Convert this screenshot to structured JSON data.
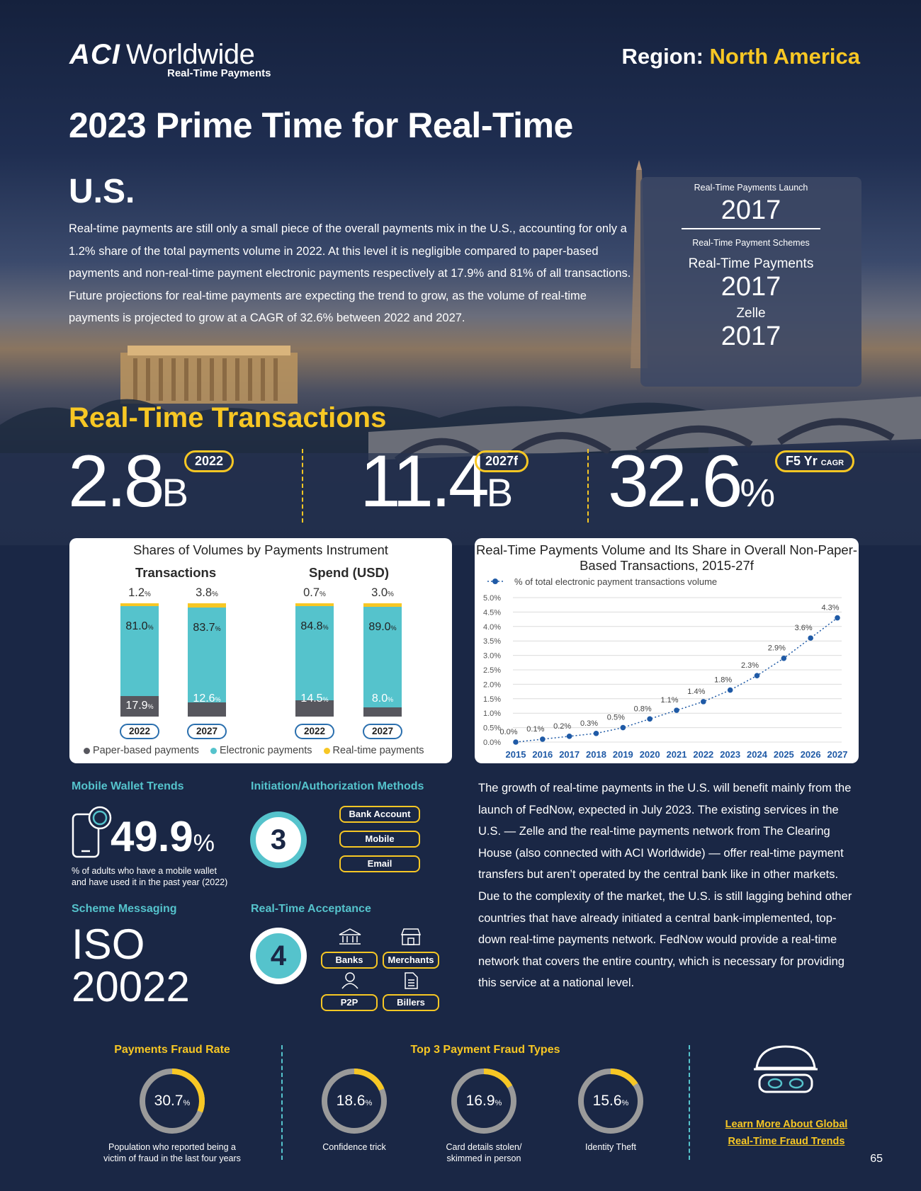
{
  "header": {
    "logo_main": "Worldwide",
    "logo_mark": "ACI",
    "logo_sub": "Real-Time Payments",
    "region_label": "Region:",
    "region_value": "North America",
    "title": "2023 Prime Time for Real-Time"
  },
  "intro": {
    "country": "U.S.",
    "text": "Real-time payments are still only a small piece of the overall payments mix in the U.S., accounting for only a 1.2% share of the total payments volume in 2022. At this level it is negligible compared to paper-based payments and non-real-time payment electronic payments respectively at 17.9% and 81% of all transactions. Future projections for real-time payments are expecting the trend to grow, as the volume of real-time payments is projected to grow at a CAGR of 32.6% between 2022 and 2027."
  },
  "launch_box": {
    "launch_label": "Real-Time Payments Launch",
    "launch_year": "2017",
    "schemes_label": "Real-Time Payment Schemes",
    "scheme1_name": "Real-Time Payments",
    "scheme1_year": "2017",
    "scheme2_name": "Zelle",
    "scheme2_year": "2017"
  },
  "transactions": {
    "title": "Real-Time Transactions",
    "k1_value": "2.8",
    "k1_unit": "B",
    "k1_tag": "2022",
    "k2_value": "11.4",
    "k2_unit": "B",
    "k2_tag": "2027f",
    "k3_value": "32.6",
    "k3_unit": "%",
    "k3_tag": "F5 Yr",
    "k3_tag_small": "CAGR"
  },
  "shares_chart": {
    "title": "Shares of Volumes by Payments Instrument",
    "group1": "Transactions",
    "group2": "Spend (USD)",
    "pct": "%",
    "legend_paper": "Paper-based payments",
    "legend_electronic": "Electronic payments",
    "legend_rt": "Real-time payments",
    "bars": [
      {
        "year": "2022",
        "rt": "1.2",
        "el": "81.0",
        "pb": "17.9"
      },
      {
        "year": "2027",
        "rt": "3.8",
        "el": "83.7",
        "pb": "12.6"
      },
      {
        "year": "2022",
        "rt": "0.7",
        "el": "84.8",
        "pb": "14.5"
      },
      {
        "year": "2027",
        "rt": "3.0",
        "el": "89.0",
        "pb": "8.0"
      }
    ]
  },
  "chart_data": {
    "type": "line",
    "title": "Real-Time Payments Volume and Its Share in Overall Non-Paper-Based Transactions, 2015-27f",
    "series": [
      {
        "name": "% of total electronic payment transactions volume",
        "values": [
          0.0,
          0.1,
          0.2,
          0.3,
          0.5,
          0.8,
          1.1,
          1.4,
          1.8,
          2.3,
          2.9,
          3.6,
          4.3
        ]
      }
    ],
    "x": [
      "2015",
      "2016",
      "2017",
      "2018",
      "2019",
      "2020",
      "2021",
      "2022",
      "2023",
      "2024",
      "2025",
      "2026",
      "2027"
    ],
    "yticks": [
      "0.0%",
      "0.5%",
      "1.0%",
      "1.5%",
      "2.0%",
      "2.5%",
      "3.0%",
      "3.5%",
      "4.0%",
      "4.5%",
      "5.0%"
    ],
    "labels": [
      "0.0%",
      "0.1%",
      "0.2%",
      "0.3%",
      "0.5%",
      "0.8%",
      "1.1%",
      "1.4%",
      "1.8%",
      "2.3%",
      "2.9%",
      "3.6%",
      "4.3%"
    ],
    "ylim": [
      0,
      5
    ],
    "grid": true,
    "color": "#1f5aa6"
  },
  "mobile_wallet": {
    "heading": "Mobile Wallet Trends",
    "value": "49.9",
    "unit": "%",
    "note1": "% of adults who have a mobile wallet",
    "note2": "and have used it in the past year (2022)"
  },
  "initiation": {
    "heading": "Initiation/Authorization Methods",
    "count": "3",
    "methods": [
      "Bank Account",
      "Mobile",
      "Email"
    ]
  },
  "scheme_messaging": {
    "heading": "Scheme Messaging",
    "line1": "ISO",
    "line2": "20022"
  },
  "acceptance": {
    "heading": "Real-Time Acceptance",
    "count": "4",
    "items": [
      "Banks",
      "Merchants",
      "P2P",
      "Billers"
    ]
  },
  "body2": "The growth of real-time payments in the U.S. will benefit mainly from the launch of FedNow, expected in July 2023. The existing services in the U.S. — Zelle and the real-time payments network from The Clearing House (also connected with ACI Worldwide) — offer real-time payment transfers but aren’t operated by the central bank like in other markets. Due to the complexity of the market, the U.S. is still lagging behind other countries that have already initiated a central bank-implemented, top-down real-time payments network. FedNow would provide a real-time network that covers the entire country, which is necessary for providing this service at a national level.",
  "fraud": {
    "rate_heading": "Payments Fraud Rate",
    "types_heading": "Top 3 Payment Fraud Types",
    "pct": "%",
    "rate": {
      "value": "30.7",
      "fraction": 0.307,
      "caption1": "Population who reported being a",
      "caption2": "victim of fraud in the last four years"
    },
    "types": [
      {
        "value": "18.6",
        "fraction": 0.186,
        "caption1": "Confidence trick",
        "caption2": ""
      },
      {
        "value": "16.9",
        "fraction": 0.169,
        "caption1": "Card details stolen/",
        "caption2": "skimmed in person"
      },
      {
        "value": "15.6",
        "fraction": 0.156,
        "caption1": "Identity Theft",
        "caption2": ""
      }
    ],
    "link1": "Learn More About Global",
    "link2": "Real-Time Fraud Trends",
    "accent": "#f7c724",
    "track": "#9a9a9a"
  },
  "page_number": "65"
}
